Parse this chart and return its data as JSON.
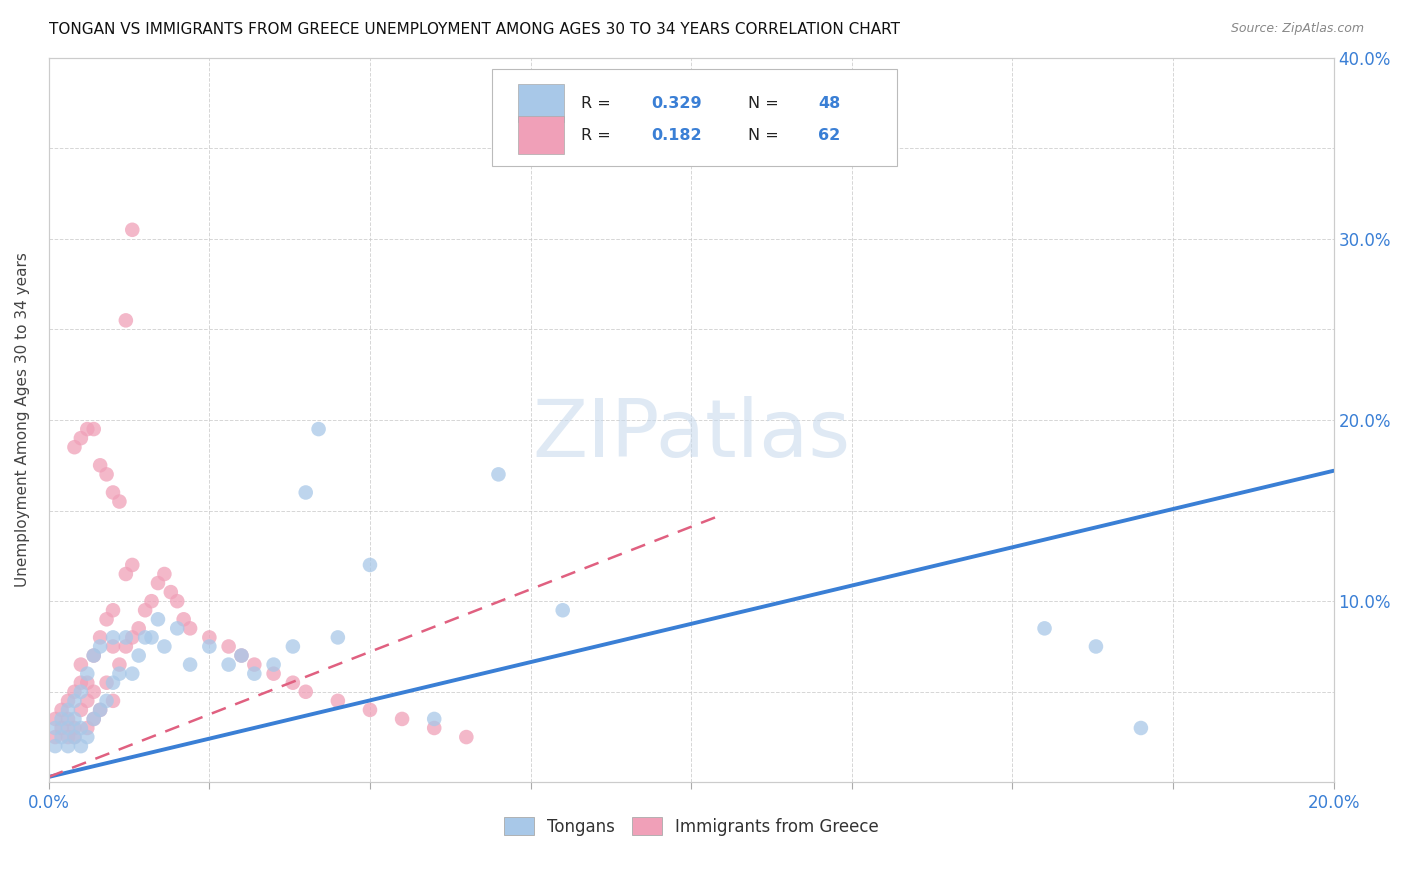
{
  "title": "TONGAN VS IMMIGRANTS FROM GREECE UNEMPLOYMENT AMONG AGES 30 TO 34 YEARS CORRELATION CHART",
  "source": "Source: ZipAtlas.com",
  "ylabel": "Unemployment Among Ages 30 to 34 years",
  "xlim": [
    0,
    0.2
  ],
  "ylim": [
    0,
    0.4
  ],
  "blue_color": "#a8c8e8",
  "pink_color": "#f0a0b8",
  "blue_line_color": "#3a7fd5",
  "pink_line_color": "#e06080",
  "blue_R": 0.329,
  "blue_N": 48,
  "pink_R": 0.182,
  "pink_N": 62,
  "legend_label_blue": "Tongans",
  "legend_label_pink": "Immigrants from Greece",
  "watermark": "ZIPatlas",
  "blue_trend": [
    0.0,
    0.003,
    0.2,
    0.172
  ],
  "pink_trend": [
    0.0,
    0.003,
    0.105,
    0.148
  ],
  "blue_scatter_x": [
    0.001,
    0.001,
    0.002,
    0.002,
    0.003,
    0.003,
    0.003,
    0.004,
    0.004,
    0.004,
    0.005,
    0.005,
    0.005,
    0.006,
    0.006,
    0.007,
    0.007,
    0.008,
    0.008,
    0.009,
    0.01,
    0.01,
    0.011,
    0.012,
    0.013,
    0.014,
    0.015,
    0.016,
    0.017,
    0.018,
    0.02,
    0.022,
    0.025,
    0.028,
    0.03,
    0.032,
    0.035,
    0.038,
    0.04,
    0.042,
    0.045,
    0.05,
    0.06,
    0.07,
    0.08,
    0.155,
    0.163,
    0.17
  ],
  "blue_scatter_y": [
    0.02,
    0.03,
    0.025,
    0.035,
    0.02,
    0.03,
    0.04,
    0.025,
    0.035,
    0.045,
    0.02,
    0.03,
    0.05,
    0.025,
    0.06,
    0.035,
    0.07,
    0.04,
    0.075,
    0.045,
    0.055,
    0.08,
    0.06,
    0.08,
    0.06,
    0.07,
    0.08,
    0.08,
    0.09,
    0.075,
    0.085,
    0.065,
    0.075,
    0.065,
    0.07,
    0.06,
    0.065,
    0.075,
    0.16,
    0.195,
    0.08,
    0.12,
    0.035,
    0.17,
    0.095,
    0.085,
    0.075,
    0.03
  ],
  "pink_scatter_x": [
    0.001,
    0.001,
    0.002,
    0.002,
    0.003,
    0.003,
    0.003,
    0.004,
    0.004,
    0.004,
    0.005,
    0.005,
    0.005,
    0.006,
    0.006,
    0.006,
    0.007,
    0.007,
    0.007,
    0.008,
    0.008,
    0.009,
    0.009,
    0.01,
    0.01,
    0.01,
    0.011,
    0.012,
    0.012,
    0.013,
    0.013,
    0.014,
    0.015,
    0.016,
    0.017,
    0.018,
    0.019,
    0.02,
    0.021,
    0.022,
    0.025,
    0.028,
    0.03,
    0.032,
    0.035,
    0.038,
    0.04,
    0.045,
    0.05,
    0.055,
    0.06,
    0.065,
    0.004,
    0.005,
    0.006,
    0.007,
    0.008,
    0.009,
    0.01,
    0.011,
    0.012,
    0.013
  ],
  "pink_scatter_y": [
    0.025,
    0.035,
    0.03,
    0.04,
    0.025,
    0.035,
    0.045,
    0.025,
    0.03,
    0.05,
    0.04,
    0.055,
    0.065,
    0.03,
    0.045,
    0.055,
    0.035,
    0.05,
    0.07,
    0.04,
    0.08,
    0.055,
    0.09,
    0.045,
    0.075,
    0.095,
    0.065,
    0.075,
    0.115,
    0.08,
    0.12,
    0.085,
    0.095,
    0.1,
    0.11,
    0.115,
    0.105,
    0.1,
    0.09,
    0.085,
    0.08,
    0.075,
    0.07,
    0.065,
    0.06,
    0.055,
    0.05,
    0.045,
    0.04,
    0.035,
    0.03,
    0.025,
    0.185,
    0.19,
    0.195,
    0.195,
    0.175,
    0.17,
    0.16,
    0.155,
    0.255,
    0.305
  ]
}
